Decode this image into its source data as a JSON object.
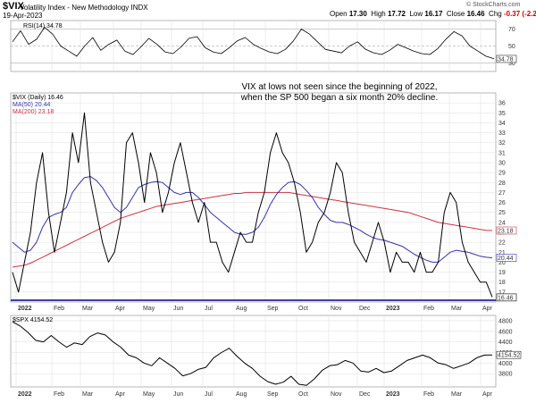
{
  "header": {
    "symbol": "$VIX",
    "fullname": "Volatility Index - New Methodology INDX",
    "date": "19-Apr-2023",
    "open_label": "Open",
    "open": "17.30",
    "high_label": "High",
    "high": "17.72",
    "low_label": "Low",
    "low": "16.17",
    "close_label": "Close",
    "close": "16.46",
    "chg_label": "Chg",
    "chg": "-0.37 (-2.20%)",
    "chg_color": "#cc0000",
    "copyright": "© StockCharts.com"
  },
  "colors": {
    "price": "#000000",
    "ma50": "#3333aa",
    "ma200": "#cc3344",
    "rsi": "#000000",
    "grid": "#dddddd",
    "baseline": "#000080"
  },
  "chart_data": [
    {
      "type": "line",
      "panel": "rsi",
      "legend": "RSI(14) 34.78",
      "last_label": "34.78",
      "y_ticks": [
        30,
        50,
        70
      ],
      "ylim": [
        20,
        80
      ],
      "x_ticks": [
        "Feb",
        "Mar",
        "Apr",
        "May",
        "Jun",
        "Jul",
        "Aug",
        "Sep",
        "Oct",
        "Nov",
        "Dec",
        "2023",
        "Feb",
        "Mar",
        "Apr"
      ],
      "series": [
        {
          "values": [
            55,
            68,
            52,
            58,
            72,
            64,
            50,
            44,
            38,
            50,
            60,
            45,
            52,
            57,
            44,
            40,
            49,
            59,
            52,
            43,
            41,
            49,
            59,
            61,
            48,
            43,
            41,
            48,
            56,
            60,
            52,
            47,
            43,
            41,
            46,
            56,
            70,
            64,
            55,
            46,
            44,
            42,
            50,
            55,
            46,
            42,
            40,
            45,
            52,
            48,
            44,
            41,
            40,
            47,
            58,
            67,
            62,
            50,
            44,
            38,
            35
          ]
        }
      ]
    },
    {
      "type": "line",
      "panel": "vix",
      "legend": {
        "symbol": "$VIX (Daily) 16.46",
        "ma50": "MA(50) 20.44",
        "ma200": "MA(200) 23.18"
      },
      "last_labels": {
        "price": "16.46",
        "ma50": "20.44",
        "ma200": "23.18"
      },
      "annotation": [
        "VIX at lows not seen since the beginning of 2022,",
        "when the SP 500 began a six month 20% decline."
      ],
      "y_ticks": [
        17,
        18,
        19,
        20,
        21,
        22,
        23,
        24,
        25,
        26,
        27,
        28,
        29,
        30,
        31,
        32,
        33,
        34,
        35,
        36
      ],
      "ylim": [
        16,
        37
      ],
      "x_ticks": [
        "2022",
        "Feb",
        "Mar",
        "Apr",
        "May",
        "Jun",
        "Jul",
        "Aug",
        "Sep",
        "Oct",
        "Nov",
        "Dec",
        "2023",
        "Feb",
        "Mar",
        "Apr"
      ],
      "series": [
        {
          "name": "$VIX",
          "values": [
            19,
            17,
            20,
            23,
            28,
            31,
            25,
            21,
            24,
            27,
            33,
            30,
            35,
            28,
            25,
            22,
            20,
            21,
            24,
            32,
            33,
            30,
            26,
            31,
            29,
            25,
            27,
            30,
            32,
            29,
            26,
            24,
            26,
            22,
            22,
            20,
            19,
            21,
            23,
            22,
            22,
            25,
            27,
            31,
            33,
            31,
            30,
            28,
            25,
            21,
            22,
            24,
            25,
            27,
            30,
            29,
            25,
            22,
            21,
            20,
            22,
            24,
            22,
            19,
            21,
            20,
            20,
            19,
            21,
            19,
            19,
            20,
            25,
            27,
            26,
            22,
            20,
            19,
            18,
            18,
            16.5
          ]
        },
        {
          "name": "MA(50)",
          "values": [
            22,
            21.5,
            21,
            21.2,
            22,
            23.5,
            24.5,
            24.8,
            25,
            25.5,
            27,
            27.8,
            28.5,
            28.6,
            28.2,
            27.5,
            26.5,
            25.5,
            25,
            25.5,
            26.5,
            27.5,
            27.8,
            28,
            28.1,
            28,
            27.5,
            27,
            26.8,
            27,
            27,
            26.5,
            25.8,
            25,
            24.5,
            24,
            23.5,
            23,
            22.8,
            22.8,
            23,
            23.5,
            24.5,
            25.8,
            26.8,
            27.5,
            28,
            28.1,
            27.8,
            27.2,
            26.5,
            25.5,
            24.8,
            24.2,
            24,
            24,
            23.8,
            23.5,
            23.2,
            22.8,
            22.5,
            22.3,
            22.2,
            22,
            21.8,
            21.6,
            21.2,
            20.8,
            20.5,
            20.2,
            20,
            20,
            20.5,
            21,
            21.2,
            21.1,
            21,
            20.8,
            20.6,
            20.5,
            20.44
          ]
        },
        {
          "name": "MA(200)",
          "values": [
            19.5,
            19.6,
            19.7,
            19.9,
            20.2,
            20.5,
            20.8,
            21.1,
            21.4,
            21.7,
            22,
            22.3,
            22.6,
            22.9,
            23.2,
            23.5,
            23.8,
            24.1,
            24.4,
            24.6,
            24.8,
            25,
            25.2,
            25.4,
            25.6,
            25.7,
            25.8,
            25.9,
            26,
            26.1,
            26.2,
            26.3,
            26.4,
            26.5,
            26.6,
            26.7,
            26.8,
            26.9,
            26.9,
            27,
            27,
            27,
            27,
            27,
            27,
            27,
            27,
            26.9,
            26.8,
            26.7,
            26.6,
            26.5,
            26.4,
            26.3,
            26.2,
            26.1,
            26,
            25.9,
            25.8,
            25.7,
            25.6,
            25.5,
            25.4,
            25.3,
            25.2,
            25.1,
            25,
            24.8,
            24.6,
            24.4,
            24.2,
            24,
            23.9,
            23.8,
            23.7,
            23.6,
            23.5,
            23.4,
            23.3,
            23.2,
            23.18
          ]
        }
      ]
    },
    {
      "type": "line",
      "panel": "spx",
      "legend": "$SPX 4154.52",
      "last_label": "4154.52",
      "y_ticks": [
        3800,
        4000,
        4200,
        4400,
        4600,
        4800
      ],
      "ylim": [
        3550,
        4900
      ],
      "x_ticks": [
        "2022",
        "Feb",
        "Mar",
        "Apr",
        "May",
        "Jun",
        "Jul",
        "Aug",
        "Sep",
        "Oct",
        "Nov",
        "Dec",
        "2023",
        "Feb",
        "Mar",
        "Apr"
      ],
      "series": [
        {
          "name": "$SPX",
          "values": [
            4780,
            4700,
            4580,
            4430,
            4400,
            4520,
            4400,
            4300,
            4380,
            4350,
            4500,
            4570,
            4530,
            4400,
            4300,
            4150,
            4100,
            4000,
            3950,
            4100,
            4000,
            3900,
            3760,
            3800,
            3880,
            3920,
            4100,
            4200,
            4280,
            4130,
            4000,
            3900,
            3750,
            3650,
            3600,
            3640,
            3750,
            3600,
            3580,
            3700,
            3860,
            3950,
            3970,
            4050,
            4000,
            3850,
            3830,
            3900,
            3820,
            3850,
            3950,
            4050,
            4100,
            4150,
            4100,
            4000,
            3970,
            3900,
            3950,
            4000,
            4100,
            4150,
            4154.52
          ]
        }
      ]
    }
  ]
}
